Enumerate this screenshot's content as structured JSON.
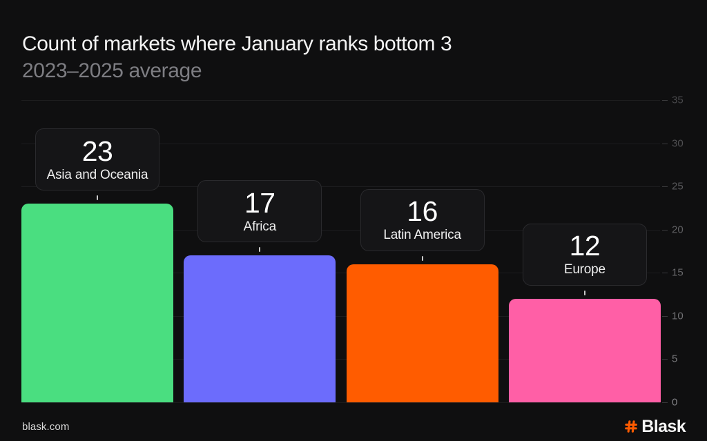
{
  "chart_data": {
    "type": "bar",
    "title": "Count of markets where January ranks bottom 3",
    "subtitle": "2023–2025 average",
    "categories": [
      "Asia and Oceania",
      "Africa",
      "Latin America",
      "Europe"
    ],
    "values": [
      23,
      17,
      16,
      12
    ],
    "bar_colors": [
      "#4ade80",
      "#6c6cfc",
      "#ff5c00",
      "#ff5fa6"
    ],
    "xlabel": "",
    "ylabel": "",
    "ylim": [
      0,
      35
    ],
    "yticks": [
      0,
      5,
      10,
      15,
      20,
      25,
      30,
      35
    ],
    "yaxis_side": "right",
    "grid": "horizontal",
    "legend": "none",
    "value_label_style": "tooltip-card-above-bar"
  },
  "footer": {
    "website": "blask.com",
    "brand": "Blask",
    "brand_icon": "hash-icon"
  },
  "colors": {
    "background": "#0f0f10",
    "title": "#f4f4f4",
    "subtitle": "#7d7d82",
    "grid_line": "#1d1d1f",
    "axis_tick": "#3a3a3d",
    "axis_label": "#808084",
    "card_background": "#151517",
    "card_border": "#2a2a2d",
    "card_number": "#ffffff",
    "card_label": "#efefef",
    "connector": "#c9c9c9",
    "footer_text": "#d9d9d9",
    "brand_orange": "#ff5b00",
    "brand_text": "#f4f4f4"
  }
}
